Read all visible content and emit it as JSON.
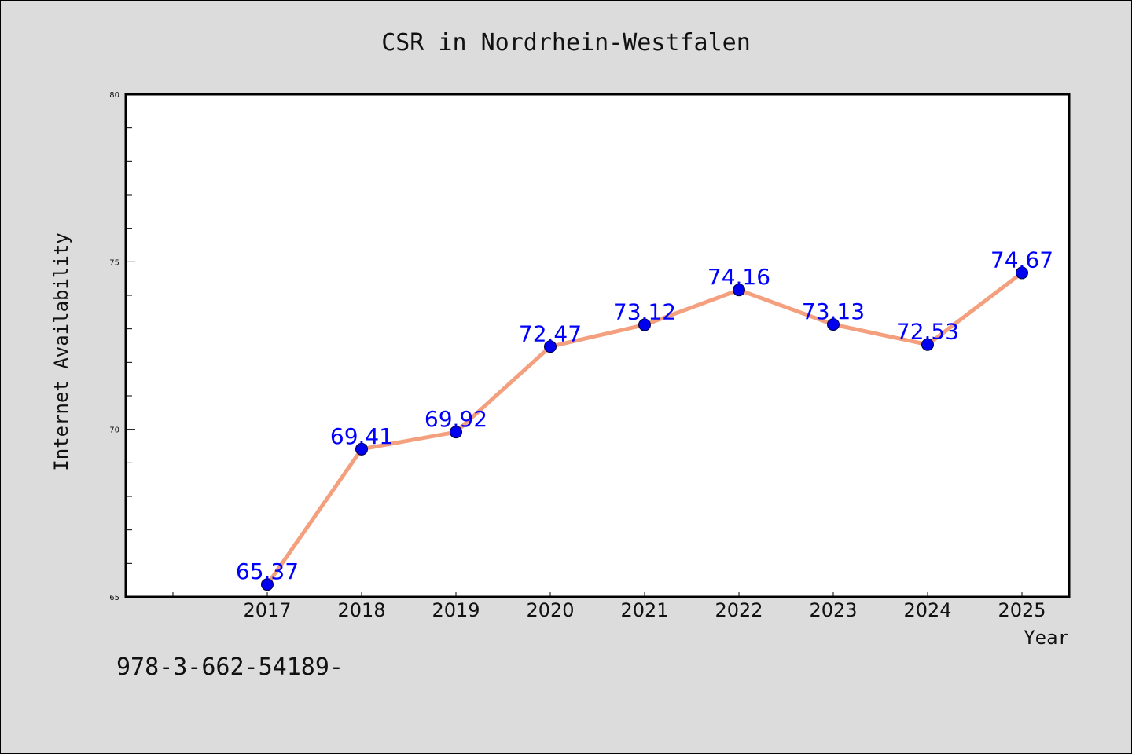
{
  "chart_data": {
    "type": "line",
    "title": "CSR in Nordrhein-Westfalen",
    "xlabel": "Year",
    "ylabel": "Internet Availability",
    "categories": [
      "2017",
      "2018",
      "2019",
      "2020",
      "2021",
      "2022",
      "2023",
      "2024",
      "2025"
    ],
    "values": [
      65.37,
      69.41,
      69.92,
      72.47,
      73.12,
      74.16,
      73.13,
      72.53,
      74.67
    ],
    "data_labels": [
      "65.37",
      "69.41",
      "69.92",
      "72.47",
      "73.12",
      "74.16",
      "73.13",
      "72.53",
      "74.67"
    ],
    "ylim": [
      65,
      80
    ],
    "y_ticks": [
      "65",
      "70",
      "75",
      "80"
    ],
    "grid": false,
    "legend": "none",
    "line_color": "#f4a07f",
    "marker_color": "#0000ee",
    "label_color": "#0000ff"
  },
  "footnote": "978-3-662-54189-"
}
